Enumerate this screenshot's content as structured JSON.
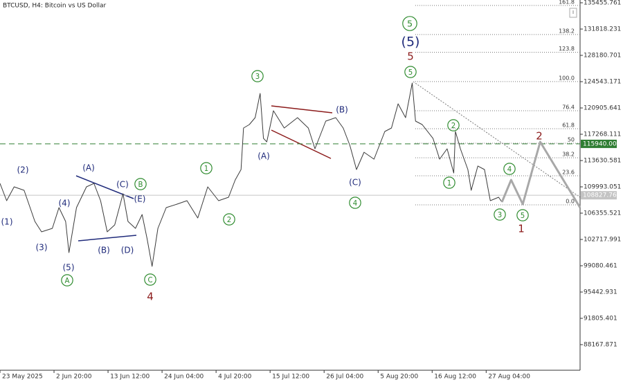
{
  "chart_data": {
    "type": "line",
    "title": "BTCUSD, H4:  Bitcoin vs US Dollar",
    "xlim": [
      0,
      698
    ],
    "ylim": [
      84626,
      135839
    ],
    "xticks": [
      {
        "value": 0,
        "label": "23 May 2025"
      },
      {
        "value": 65,
        "label": "2 Jun 20:00"
      },
      {
        "value": 130,
        "label": "13 Jun 12:00"
      },
      {
        "value": 195,
        "label": "24 Jun 04:00"
      },
      {
        "value": 260,
        "label": "4 Jul 20:00"
      },
      {
        "value": 325,
        "label": "15 Jul 12:00"
      },
      {
        "value": 390,
        "label": "26 Jul 04:00"
      },
      {
        "value": 455,
        "label": "5 Aug 20:00"
      },
      {
        "value": 520,
        "label": "16 Aug 12:00"
      },
      {
        "value": 585,
        "label": "27 Aug 04:00"
      }
    ],
    "yticks": [
      135455.761,
      131818.231,
      128180.701,
      124543.171,
      120905.641,
      117268.111,
      113630.581,
      109993.051,
      106355.521,
      102717.991,
      99080.461,
      95442.931,
      91805.401,
      88167.871
    ],
    "series": [
      {
        "color": "#3a3a3a",
        "width": 1,
        "x": [
          0,
          8,
          17,
          29,
          42,
          50,
          63,
          71,
          79,
          83,
          92,
          104,
          113,
          121,
          129,
          138,
          148,
          154,
          163,
          171,
          177,
          183,
          190,
          200,
          213,
          225,
          238,
          250,
          263,
          275,
          283,
          290,
          293,
          300,
          307,
          313,
          317,
          321,
          329,
          342,
          358,
          371,
          379,
          392,
          404,
          413,
          421,
          429,
          438,
          450,
          463,
          471,
          479,
          488,
          496,
          500,
          508,
          521,
          529,
          538,
          546,
          548,
          554,
          563,
          567,
          575,
          583,
          590,
          600,
          604
        ],
        "values": [
          110470,
          108080,
          109990,
          109510,
          105210,
          103770,
          104250,
          107120,
          105210,
          100900,
          107120,
          109990,
          110470,
          108080,
          103770,
          104730,
          109040,
          105210,
          104250,
          106160,
          102810,
          98990,
          104250,
          107120,
          107600,
          108080,
          105690,
          109990,
          108080,
          108560,
          110950,
          112390,
          118130,
          118610,
          119570,
          122920,
          116700,
          116220,
          120520,
          118130,
          119570,
          118130,
          115260,
          119090,
          119570,
          118130,
          115740,
          112390,
          114780,
          113820,
          117650,
          118130,
          121480,
          119570,
          124350,
          119090,
          118610,
          116700,
          113820,
          115260,
          111910,
          117650,
          115260,
          112390,
          109510,
          112870,
          112390,
          108080,
          108560,
          107890
        ]
      },
      {
        "color": "#a8a8a8",
        "width": 3,
        "x": [
          604,
          615,
          629,
          650,
          698
        ],
        "values": [
          107890,
          110950,
          107600,
          116220,
          107120
        ]
      }
    ],
    "levels": [
      {
        "value": 115940,
        "value_label": "115940.000",
        "color": "#2e7d32",
        "style": "dashed"
      },
      {
        "value": 108827.765,
        "color": "#c4c4c4",
        "style": "solid"
      }
    ],
    "fibonacci": {
      "low": 107500,
      "high": 124550,
      "levels": [
        161.8,
        138.2,
        123.8,
        {
          "value": 100,
          "label": "100.0"
        },
        76.4,
        61.8,
        50,
        38.2,
        23.6,
        {
          "value": 0,
          "label": "0.0"
        }
      ]
    },
    "annotations": [
      {
        "text": "(1)",
        "color": "#1f2a7a"
      },
      {
        "text": "(2)",
        "color": "#1f2a7a"
      },
      {
        "text": "(3)",
        "color": "#1f2a7a"
      },
      {
        "text": "(4)",
        "color": "#1f2a7a"
      },
      {
        "text": "(5)",
        "color": "#1f2a7a"
      },
      {
        "text": "(A)",
        "color": "#1f2a7a"
      },
      {
        "text": "(B)",
        "color": "#1f2a7a"
      },
      {
        "text": "(C)",
        "color": "#1f2a7a"
      },
      {
        "text": "(D)",
        "color": "#1f2a7a"
      },
      {
        "text": "(E)",
        "color": "#1f2a7a"
      },
      {
        "text": "(A)",
        "color": "#1f2a7a"
      },
      {
        "text": "(B)",
        "color": "#1f2a7a"
      },
      {
        "text": "(C)",
        "color": "#1f2a7a"
      },
      {
        "text": "(5)",
        "color": "#1f2a7a"
      },
      {
        "text": "A",
        "color": "#2e8b2e",
        "circled": true
      },
      {
        "text": "B",
        "color": "#2e8b2e",
        "circled": true
      },
      {
        "text": "C",
        "color": "#2e8b2e",
        "circled": true
      },
      {
        "text": "1",
        "color": "#2e8b2e",
        "circled": true
      },
      {
        "text": "2",
        "color": "#2e8b2e",
        "circled": true
      },
      {
        "text": "3",
        "color": "#2e8b2e",
        "circled": true
      },
      {
        "text": "4",
        "color": "#2e8b2e",
        "circled": true
      },
      {
        "text": "5",
        "color": "#2e8b2e",
        "circled": true
      },
      {
        "text": "5",
        "color": "#2e8b2e",
        "circled": true
      },
      {
        "text": "1",
        "color": "#2e8b2e",
        "circled": true
      },
      {
        "text": "2",
        "color": "#2e8b2e",
        "circled": true
      },
      {
        "text": "3",
        "color": "#2e8b2e",
        "circled": true
      },
      {
        "text": "4",
        "color": "#2e8b2e",
        "circled": true
      },
      {
        "text": "5",
        "color": "#2e8b2e",
        "circled": true
      },
      {
        "text": "4",
        "color": "#8b1a1a"
      },
      {
        "text": "5",
        "color": "#8b1a1a"
      },
      {
        "text": "1",
        "color": "#8b1a1a"
      },
      {
        "text": "2",
        "color": "#8b1a1a"
      }
    ]
  }
}
